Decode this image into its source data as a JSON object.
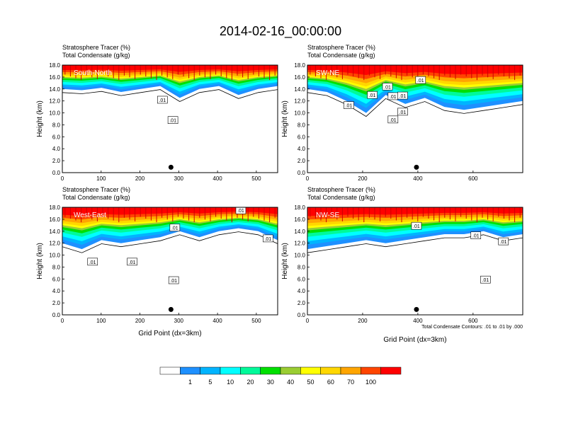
{
  "figure": {
    "title": "2014-02-16_00:00:00",
    "footnote": "Total Condensate Contours: .01 to .01 by .000",
    "xlabel": "Grid Point (dx=3km)",
    "ylabel": "Height (km)",
    "field_label": "Stratosphere Tracer   (%)",
    "contour_label": "Total Condensate   (g/kg)",
    "contour_value_label": ".01",
    "marker": "site-dot"
  },
  "colorbar": {
    "levels": [
      "1",
      "5",
      "10",
      "20",
      "30",
      "40",
      "50",
      "60",
      "70",
      "100"
    ],
    "colors": [
      "#ffffff",
      "#1e90ff",
      "#00b4ff",
      "#00ffff",
      "#00fa9a",
      "#00e000",
      "#9acd32",
      "#ffff00",
      "#ffd700",
      "#ffa500",
      "#ff4500",
      "#ff0000"
    ]
  },
  "chart_data": [
    {
      "type": "heatmap",
      "panel_label": "South-North",
      "x_ticks": [
        "0",
        "100",
        "200",
        "300",
        "400",
        "500"
      ],
      "y_ticks": [
        "0.0",
        "2.0",
        "4.0",
        "6.0",
        "8.0",
        "10.0",
        "12.0",
        "14.0",
        "16.0",
        "18.0"
      ],
      "xlim": [
        0,
        555
      ],
      "ylim": [
        0,
        18
      ],
      "site_x": 280,
      "tracer_layer_bottom_km": [
        14.0,
        13.8,
        14.2,
        13.5,
        14.0,
        14.5,
        12.5,
        14.0,
        14.5,
        13.0,
        14.0,
        14.5
      ],
      "contour_labels": [
        [
          258,
          12.2
        ],
        [
          285,
          8.8
        ]
      ]
    },
    {
      "type": "heatmap",
      "panel_label": "SW-NE",
      "x_ticks": [
        "0",
        "200",
        "400",
        "600"
      ],
      "y_ticks": [
        "0.0",
        "2.0",
        "4.0",
        "6.0",
        "8.0",
        "10.0",
        "12.0",
        "14.0",
        "16.0",
        "18.0"
      ],
      "xlim": [
        0,
        780
      ],
      "ylim": [
        0,
        18
      ],
      "site_x": 395,
      "tracer_layer_bottom_km": [
        14.0,
        13.5,
        12.0,
        10.0,
        13.0,
        11.5,
        12.5,
        11.0,
        10.5,
        11.0,
        11.5,
        12.0
      ],
      "contour_labels": [
        [
          150,
          11.3
        ],
        [
          235,
          13.0
        ],
        [
          290,
          14.4
        ],
        [
          310,
          12.8
        ],
        [
          345,
          12.9
        ],
        [
          345,
          10.2
        ],
        [
          310,
          8.9
        ],
        [
          410,
          15.5
        ]
      ]
    },
    {
      "type": "heatmap",
      "panel_label": "West-East",
      "x_ticks": [
        "0",
        "100",
        "200",
        "300",
        "400",
        "500"
      ],
      "y_ticks": [
        "0.0",
        "2.0",
        "4.0",
        "6.0",
        "8.0",
        "10.0",
        "12.0",
        "14.0",
        "16.0",
        "18.0"
      ],
      "xlim": [
        0,
        555
      ],
      "ylim": [
        0,
        18
      ],
      "site_x": 280,
      "tracer_layer_bottom_km": [
        12.0,
        11.0,
        12.5,
        12.0,
        12.5,
        13.0,
        14.0,
        13.0,
        14.0,
        14.5,
        14.0,
        12.5
      ],
      "contour_labels": [
        [
          78,
          8.9
        ],
        [
          180,
          8.9
        ],
        [
          287,
          5.8
        ],
        [
          290,
          14.6
        ],
        [
          530,
          12.8
        ],
        [
          460,
          17.5
        ]
      ]
    },
    {
      "type": "heatmap",
      "panel_label": "NW-SE",
      "x_ticks": [
        "0",
        "200",
        "400",
        "600"
      ],
      "y_ticks": [
        "0.0",
        "2.0",
        "4.0",
        "6.0",
        "8.0",
        "10.0",
        "12.0",
        "14.0",
        "16.0",
        "18.0"
      ],
      "xlim": [
        0,
        780
      ],
      "ylim": [
        0,
        18
      ],
      "site_x": 395,
      "tracer_layer_bottom_km": [
        11.0,
        11.5,
        12.0,
        12.5,
        12.0,
        12.5,
        13.0,
        13.5,
        13.5,
        14.0,
        13.0,
        13.5
      ],
      "contour_labels": [
        [
          395,
          14.9
        ],
        [
          610,
          13.3
        ],
        [
          710,
          12.3
        ],
        [
          645,
          5.9
        ]
      ]
    }
  ]
}
